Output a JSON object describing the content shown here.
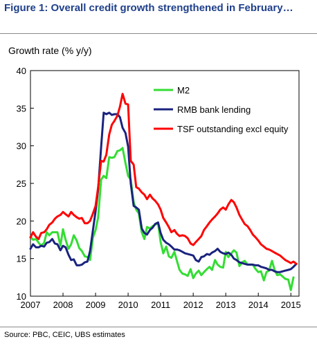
{
  "figure": {
    "title": "Figure 1: Overall credit growth strengthened in February…",
    "source": "Source:  PBC, CEIC, UBS estimates"
  },
  "chart_data": {
    "type": "line",
    "ylabel": "Growth rate (% y/y)",
    "xlim": [
      2007,
      2015.25
    ],
    "ylim": [
      10,
      40
    ],
    "x_ticks": [
      "2007",
      "2008",
      "2009",
      "2010",
      "2011",
      "2012",
      "2013",
      "2014",
      "2015"
    ],
    "y_ticks": [
      "10",
      "15",
      "20",
      "25",
      "30",
      "35",
      "40"
    ],
    "grid": false,
    "legend_position": "top-right",
    "series": [
      {
        "name": "M2",
        "color": "#33dd33",
        "x": [
          2007.0,
          2007.08,
          2007.17,
          2007.25,
          2007.33,
          2007.42,
          2007.5,
          2007.58,
          2007.67,
          2007.75,
          2007.83,
          2007.92,
          2008.0,
          2008.08,
          2008.17,
          2008.25,
          2008.33,
          2008.42,
          2008.5,
          2008.58,
          2008.67,
          2008.75,
          2008.83,
          2008.92,
          2009.0,
          2009.08,
          2009.17,
          2009.25,
          2009.33,
          2009.42,
          2009.5,
          2009.58,
          2009.67,
          2009.75,
          2009.83,
          2009.92,
          2010.0,
          2010.08,
          2010.17,
          2010.25,
          2010.33,
          2010.42,
          2010.5,
          2010.58,
          2010.67,
          2010.75,
          2010.83,
          2010.92,
          2011.0,
          2011.08,
          2011.17,
          2011.25,
          2011.33,
          2011.42,
          2011.5,
          2011.58,
          2011.67,
          2011.75,
          2011.83,
          2011.92,
          2012.0,
          2012.08,
          2012.17,
          2012.25,
          2012.33,
          2012.42,
          2012.5,
          2012.58,
          2012.67,
          2012.75,
          2012.83,
          2012.92,
          2013.0,
          2013.08,
          2013.17,
          2013.25,
          2013.33,
          2013.42,
          2013.5,
          2013.58,
          2013.67,
          2013.75,
          2013.83,
          2013.92,
          2014.0,
          2014.08,
          2014.17,
          2014.25,
          2014.33,
          2014.42,
          2014.5,
          2014.58,
          2014.67,
          2014.75,
          2014.83,
          2014.92,
          2015.0,
          2015.08
        ],
        "values": [
          17.9,
          17.5,
          17.6,
          17.1,
          16.7,
          17.1,
          18.5,
          18.1,
          18.5,
          18.5,
          18.5,
          16.7,
          18.9,
          17.5,
          16.3,
          16.9,
          18.1,
          17.4,
          16.4,
          16.0,
          15.3,
          15.2,
          14.8,
          17.8,
          18.8,
          20.5,
          25.5,
          26.0,
          25.7,
          28.5,
          28.4,
          28.5,
          29.3,
          29.4,
          29.7,
          27.7,
          26.0,
          25.5,
          22.5,
          21.5,
          21.0,
          18.5,
          17.6,
          19.2,
          19.0,
          19.3,
          19.5,
          19.7,
          17.2,
          15.7,
          16.6,
          15.3,
          15.1,
          15.9,
          14.7,
          13.5,
          13.0,
          12.9,
          12.7,
          13.6,
          12.4,
          13.0,
          13.4,
          12.8,
          13.2,
          13.6,
          13.9,
          13.5,
          14.8,
          14.2,
          13.9,
          13.8,
          15.9,
          15.2,
          15.7,
          16.1,
          15.8,
          14.0,
          14.5,
          14.7,
          14.2,
          14.2,
          14.2,
          13.6,
          13.2,
          13.3,
          12.1,
          13.2,
          13.4,
          14.7,
          13.5,
          12.8,
          12.9,
          12.6,
          12.3,
          12.2,
          10.8,
          12.5
        ]
      },
      {
        "name": "RMB bank lending",
        "color": "#1a237e",
        "x": [
          2007.0,
          2007.08,
          2007.17,
          2007.25,
          2007.33,
          2007.42,
          2007.5,
          2007.58,
          2007.67,
          2007.75,
          2007.83,
          2007.92,
          2008.0,
          2008.08,
          2008.17,
          2008.25,
          2008.33,
          2008.42,
          2008.5,
          2008.58,
          2008.67,
          2008.75,
          2008.83,
          2008.92,
          2009.0,
          2009.08,
          2009.17,
          2009.25,
          2009.33,
          2009.42,
          2009.5,
          2009.58,
          2009.67,
          2009.75,
          2009.83,
          2009.92,
          2010.0,
          2010.08,
          2010.17,
          2010.25,
          2010.33,
          2010.42,
          2010.5,
          2010.58,
          2010.67,
          2010.75,
          2010.83,
          2010.92,
          2011.0,
          2011.08,
          2011.17,
          2011.25,
          2011.33,
          2011.42,
          2011.5,
          2011.58,
          2011.67,
          2011.75,
          2011.83,
          2011.92,
          2012.0,
          2012.08,
          2012.17,
          2012.25,
          2012.33,
          2012.42,
          2012.5,
          2012.58,
          2012.67,
          2012.75,
          2012.83,
          2012.92,
          2013.0,
          2013.08,
          2013.17,
          2013.25,
          2013.33,
          2013.42,
          2013.5,
          2013.58,
          2013.67,
          2013.75,
          2013.83,
          2013.92,
          2014.0,
          2014.08,
          2014.17,
          2014.25,
          2014.33,
          2014.42,
          2014.5,
          2014.58,
          2014.67,
          2014.75,
          2014.83,
          2014.92,
          2015.0,
          2015.08,
          2015.17
        ],
        "values": [
          16.3,
          16.9,
          16.5,
          16.5,
          16.7,
          16.6,
          17.1,
          17.2,
          17.6,
          17.0,
          16.9,
          16.1,
          16.7,
          16.5,
          15.5,
          14.8,
          14.9,
          14.1,
          14.1,
          14.2,
          14.5,
          14.6,
          16.0,
          18.8,
          21.3,
          24.2,
          29.8,
          34.4,
          34.2,
          34.4,
          34.1,
          34.2,
          34.2,
          33.8,
          32.4,
          31.7,
          29.9,
          25.0,
          22.0,
          21.8,
          21.5,
          19.0,
          18.4,
          18.2,
          18.8,
          19.1,
          19.6,
          19.8,
          18.4,
          17.5,
          17.1,
          16.9,
          16.6,
          16.2,
          16.2,
          16.1,
          15.9,
          15.7,
          15.6,
          15.5,
          15.4,
          14.8,
          14.6,
          15.2,
          15.3,
          15.6,
          15.5,
          15.8,
          16.0,
          16.3,
          15.9,
          15.7,
          15.6,
          15.8,
          15.5,
          15.0,
          14.8,
          14.5,
          14.4,
          14.3,
          14.2,
          14.2,
          14.2,
          14.1,
          14.1,
          13.9,
          13.8,
          13.7,
          13.5,
          13.5,
          13.3,
          13.2,
          13.2,
          13.3,
          13.4,
          13.5,
          13.6,
          13.9,
          14.3
        ]
      },
      {
        "name": "TSF outstanding excl equity",
        "color": "#ff0000",
        "x": [
          2007.0,
          2007.08,
          2007.17,
          2007.25,
          2007.33,
          2007.42,
          2007.5,
          2007.58,
          2007.67,
          2007.75,
          2007.83,
          2007.92,
          2008.0,
          2008.08,
          2008.17,
          2008.25,
          2008.33,
          2008.42,
          2008.5,
          2008.58,
          2008.67,
          2008.75,
          2008.83,
          2008.92,
          2009.0,
          2009.08,
          2009.17,
          2009.25,
          2009.33,
          2009.42,
          2009.5,
          2009.58,
          2009.67,
          2009.75,
          2009.83,
          2009.92,
          2010.0,
          2010.08,
          2010.17,
          2010.25,
          2010.33,
          2010.42,
          2010.5,
          2010.58,
          2010.67,
          2010.75,
          2010.83,
          2010.92,
          2011.0,
          2011.08,
          2011.17,
          2011.25,
          2011.33,
          2011.42,
          2011.5,
          2011.58,
          2011.67,
          2011.75,
          2011.83,
          2011.92,
          2012.0,
          2012.08,
          2012.17,
          2012.25,
          2012.33,
          2012.42,
          2012.5,
          2012.58,
          2012.67,
          2012.75,
          2012.83,
          2012.92,
          2013.0,
          2013.08,
          2013.17,
          2013.25,
          2013.33,
          2013.42,
          2013.5,
          2013.58,
          2013.67,
          2013.75,
          2013.83,
          2013.92,
          2014.0,
          2014.08,
          2014.17,
          2014.25,
          2014.33,
          2014.42,
          2014.5,
          2014.58,
          2014.67,
          2014.75,
          2014.83,
          2014.92,
          2015.0,
          2015.08,
          2015.17
        ],
        "values": [
          17.8,
          18.5,
          17.9,
          17.6,
          18.4,
          18.5,
          18.9,
          19.5,
          19.8,
          20.3,
          20.6,
          20.8,
          21.2,
          20.9,
          20.6,
          21.2,
          20.8,
          20.5,
          20.3,
          20.4,
          19.7,
          19.7,
          20.0,
          21.0,
          22.0,
          24.5,
          28.0,
          27.9,
          28.8,
          31.5,
          32.8,
          33.3,
          34.0,
          35.2,
          36.9,
          35.6,
          35.5,
          28.0,
          27.5,
          24.5,
          24.3,
          23.8,
          23.5,
          22.9,
          23.5,
          23.0,
          22.7,
          22.2,
          21.5,
          20.4,
          19.8,
          19.2,
          18.5,
          18.8,
          18.3,
          18.0,
          18.1,
          18.0,
          17.7,
          17.0,
          16.8,
          17.2,
          17.6,
          18.0,
          18.8,
          19.3,
          19.8,
          20.2,
          20.6,
          21.0,
          21.5,
          21.8,
          21.5,
          22.2,
          22.8,
          22.5,
          21.8,
          20.8,
          20.2,
          19.6,
          19.3,
          18.8,
          18.2,
          17.8,
          17.4,
          16.9,
          16.6,
          16.3,
          16.2,
          16.0,
          15.8,
          15.6,
          15.4,
          15.1,
          14.8,
          14.6,
          14.4,
          14.6,
          14.3
        ]
      }
    ]
  }
}
